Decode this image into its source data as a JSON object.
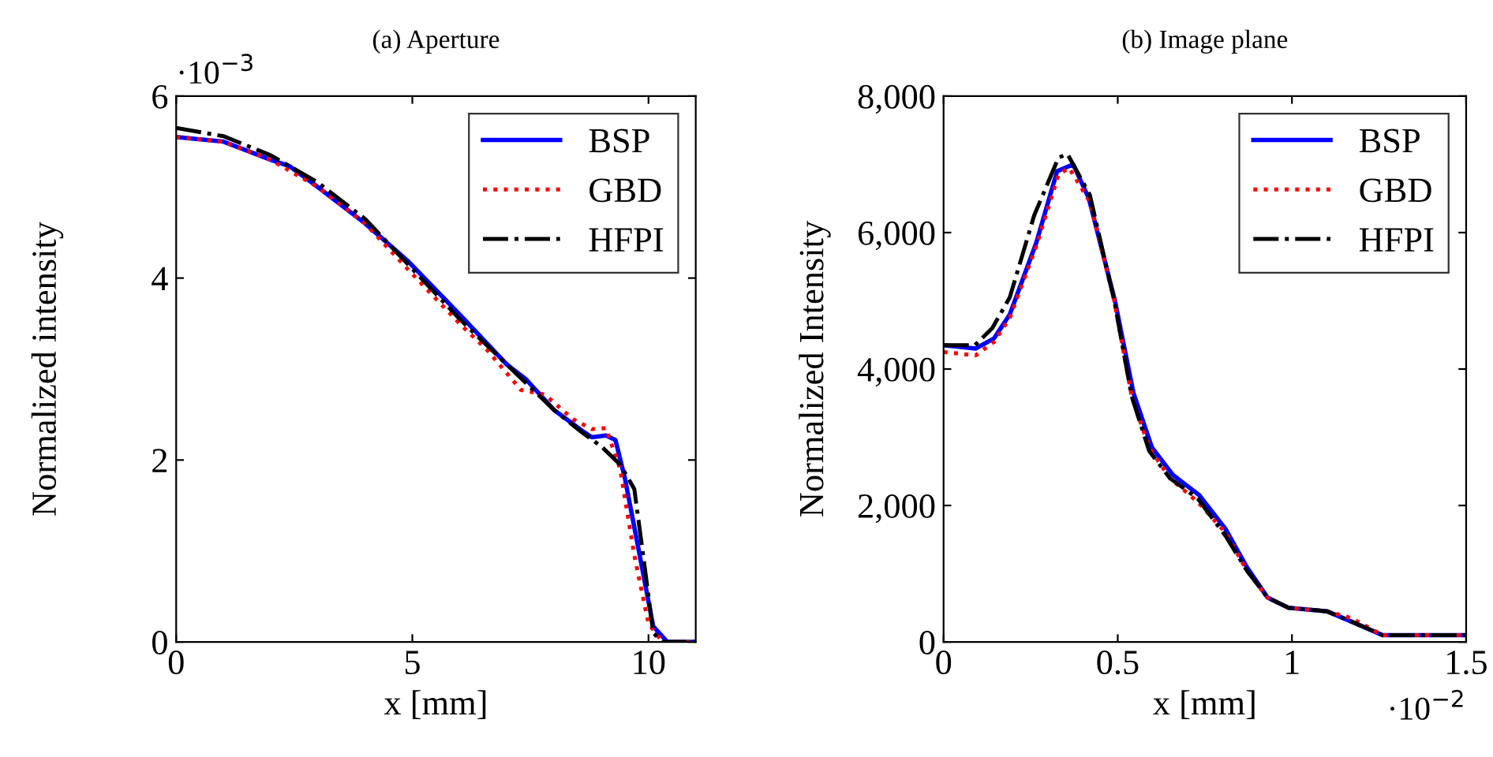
{
  "chart_data": [
    {
      "type": "line",
      "title": "(a) Aperture",
      "xlabel": "x [mm]",
      "ylabel": "Normalized intensity",
      "annotations": [
        "·10$^{−3}$"
      ],
      "xlim": [
        0,
        11
      ],
      "ylim": [
        0,
        6
      ],
      "xticks": [
        0,
        5,
        10
      ],
      "yticks": [
        0,
        2,
        4,
        6
      ],
      "grid": false,
      "legend": "top right",
      "series": [
        {
          "name": "BSP",
          "color": "#0000ff",
          "line_style": "solid",
          "x": [
            0,
            1,
            2,
            2.4,
            3,
            4,
            4.9,
            6,
            7,
            7.4,
            8,
            8.6,
            8.8,
            9.1,
            9.3,
            9.5,
            9.8,
            10.1,
            10.4,
            10.6,
            11
          ],
          "values": [
            5.55,
            5.5,
            5.3,
            5.23,
            5.0,
            4.6,
            4.19,
            3.6,
            3.05,
            2.89,
            2.55,
            2.32,
            2.25,
            2.27,
            2.22,
            1.8,
            0.99,
            0.17,
            0,
            0,
            0
          ]
        },
        {
          "name": "GBD",
          "color": "#ff0000",
          "line_style": "dotted",
          "x": [
            0,
            1,
            2,
            3,
            4,
            4.9,
            5.3,
            6,
            6.6,
            7.3,
            7.8,
            8.4,
            8.8,
            9.1,
            9.4,
            9.7,
            10,
            10.3,
            10.6,
            11
          ],
          "values": [
            5.55,
            5.5,
            5.3,
            5.0,
            4.6,
            4.1,
            3.88,
            3.5,
            3.2,
            2.77,
            2.72,
            2.45,
            2.34,
            2.35,
            1.9,
            0.95,
            0.2,
            0,
            0,
            0
          ]
        },
        {
          "name": "HFPI",
          "color": "#000000",
          "line_style": "dashdot",
          "x": [
            0,
            1,
            2,
            3,
            4,
            5,
            6,
            7,
            8,
            8.6,
            9,
            9.4,
            9.7,
            9.9,
            10.1,
            10.3,
            10.6,
            11
          ],
          "values": [
            5.65,
            5.56,
            5.35,
            5.05,
            4.65,
            4.1,
            3.55,
            3.05,
            2.55,
            2.3,
            2.15,
            1.95,
            1.68,
            0.9,
            0.1,
            0,
            0,
            0
          ]
        }
      ]
    },
    {
      "type": "line",
      "title": "(b) Image plane",
      "xlabel": "x [mm]",
      "ylabel": "Normalized Intensity",
      "annotations": [
        "·10$^{−2}$"
      ],
      "xlim": [
        0,
        1.5
      ],
      "ylim": [
        0,
        8000
      ],
      "xticks": [
        0,
        0.5,
        1,
        1.5
      ],
      "yticks": [
        {
          "value": 0,
          "label": "0"
        },
        {
          "value": 2000,
          "label": "2,000"
        },
        {
          "value": 4000,
          "label": "4,000"
        },
        {
          "value": 6000,
          "label": "6,000"
        },
        {
          "value": 8000,
          "label": "8,000"
        }
      ],
      "grid": false,
      "legend": "top right",
      "series": [
        {
          "name": "BSP",
          "color": "#0000ff",
          "line_style": "solid",
          "x": [
            0,
            0.092,
            0.145,
            0.19,
            0.266,
            0.326,
            0.372,
            0.417,
            0.492,
            0.545,
            0.598,
            0.658,
            0.734,
            0.81,
            0.87,
            0.93,
            0.99,
            1.1,
            1.17,
            1.26,
            1.4,
            1.5
          ],
          "values": [
            4350,
            4300,
            4450,
            4800,
            5850,
            6900,
            7000,
            6500,
            5000,
            3650,
            2850,
            2450,
            2150,
            1650,
            1100,
            650,
            500,
            450,
            300,
            100,
            100,
            100
          ]
        },
        {
          "name": "GBD",
          "color": "#ff0000",
          "line_style": "dotted",
          "x": [
            0,
            0.092,
            0.145,
            0.19,
            0.266,
            0.33,
            0.36,
            0.42,
            0.49,
            0.54,
            0.59,
            0.65,
            0.73,
            0.81,
            0.87,
            0.93,
            0.99,
            1.1,
            1.17,
            1.26,
            1.4,
            1.5
          ],
          "values": [
            4250,
            4200,
            4400,
            4750,
            5800,
            6850,
            6950,
            6450,
            5000,
            3600,
            2850,
            2400,
            2050,
            1600,
            1050,
            650,
            500,
            450,
            350,
            100,
            100,
            100
          ]
        },
        {
          "name": "HFPI",
          "color": "#000000",
          "line_style": "dashdot",
          "x": [
            0,
            0.09,
            0.14,
            0.19,
            0.26,
            0.33,
            0.356,
            0.42,
            0.49,
            0.54,
            0.59,
            0.65,
            0.73,
            0.81,
            0.87,
            0.93,
            0.99,
            1.1,
            1.17,
            1.26,
            1.4,
            1.5
          ],
          "values": [
            4350,
            4350,
            4600,
            5050,
            6250,
            7100,
            7150,
            6550,
            5000,
            3600,
            2800,
            2400,
            2100,
            1550,
            1050,
            650,
            500,
            450,
            300,
            100,
            100,
            100
          ]
        }
      ]
    }
  ]
}
